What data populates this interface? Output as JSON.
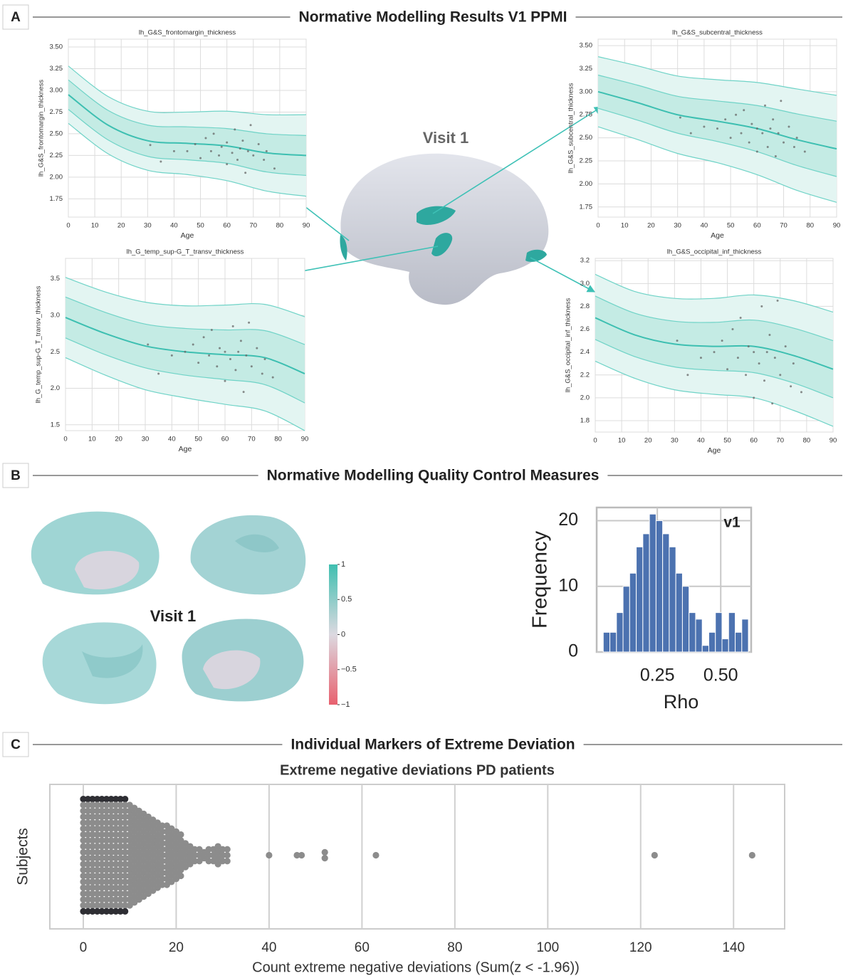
{
  "sections": [
    {
      "letter": "A",
      "title": "Normative Modelling Results V1 PPMI"
    },
    {
      "letter": "B",
      "title": "Normative Modelling Quality Control Measures"
    },
    {
      "letter": "C",
      "title": "Individual Markers of Extreme Deviation"
    }
  ],
  "brain_label": "Visit 1",
  "surface_label": "Visit 1",
  "colorbar": {
    "ylim": [
      -1,
      1
    ],
    "ticks": [
      1,
      0.5,
      0,
      {
        "value": -0.5,
        "label": "−0.5"
      },
      {
        "value": -1,
        "label": "−1"
      }
    ],
    "colors": [
      "#e8606e",
      "#dcd9e0",
      "#3fbfb0"
    ]
  },
  "chart_data": [
    {
      "type": "line",
      "title": "lh_G&S_frontomargin_thickness",
      "xlabel": "Age",
      "ylabel": "lh_G&S_frontomargin_thickness",
      "x": [
        0,
        15,
        30,
        45,
        60,
        75,
        90
      ],
      "xlim": [
        0,
        90
      ],
      "xticks": [
        0,
        10,
        20,
        30,
        40,
        50,
        60,
        70,
        80,
        90
      ],
      "ylim": [
        1.54,
        3.59
      ],
      "yticks": [
        {
          "value": 3.5,
          "label": "3.50"
        },
        3.25,
        {
          "value": 3,
          "label": "3.00"
        },
        2.75,
        {
          "value": 2.5,
          "label": "2.50"
        },
        2.25,
        {
          "value": 2,
          "label": "2.00"
        },
        1.75
      ],
      "band_colors": [
        "#e3f5f2",
        "#c4ebe4"
      ],
      "series": [
        {
          "color": "#6fd3c7",
          "values": [
            3.28,
            2.93,
            2.76,
            2.75,
            2.76,
            2.72,
            2.72
          ]
        },
        {
          "color": "#6fd3c7",
          "values": [
            3.12,
            2.77,
            2.6,
            2.58,
            2.56,
            2.5,
            2.48
          ]
        },
        {
          "color": "#3dbfb1",
          "values": [
            2.95,
            2.6,
            2.42,
            2.39,
            2.36,
            2.28,
            2.25
          ]
        },
        {
          "color": "#6fd3c7",
          "values": [
            2.78,
            2.43,
            2.24,
            2.2,
            2.16,
            2.06,
            2.02
          ]
        },
        {
          "color": "#6fd3c7",
          "values": [
            2.62,
            2.27,
            2.08,
            2.03,
            1.96,
            1.84,
            1.78
          ]
        }
      ],
      "points": {
        "color": "#666666",
        "x": [
          45,
          48,
          50,
          52,
          54,
          55,
          57,
          58,
          60,
          60,
          62,
          63,
          64,
          65,
          66,
          67,
          68,
          69,
          70,
          72,
          74,
          75,
          78,
          31,
          35,
          40
        ],
        "y": [
          2.3,
          2.38,
          2.22,
          2.45,
          2.3,
          2.5,
          2.25,
          2.35,
          2.4,
          2.15,
          2.28,
          2.55,
          2.2,
          2.33,
          2.42,
          2.05,
          2.3,
          2.6,
          2.25,
          2.38,
          2.2,
          2.3,
          2.1,
          2.37,
          2.18,
          2.3
        ]
      }
    },
    {
      "type": "line",
      "title": "lh_G&S_subcentral_thickness",
      "xlabel": "Age",
      "ylabel": "lh_G&S_subcentral_thickness",
      "x": [
        0,
        15,
        30,
        45,
        60,
        75,
        90
      ],
      "xlim": [
        0,
        90
      ],
      "xticks": [
        0,
        10,
        20,
        30,
        40,
        50,
        60,
        70,
        80,
        90
      ],
      "ylim": [
        1.64,
        3.57
      ],
      "yticks": [
        {
          "value": 3.5,
          "label": "3.50"
        },
        3.25,
        {
          "value": 3,
          "label": "3.00"
        },
        2.75,
        {
          "value": 2.5,
          "label": "2.50"
        },
        2.25,
        {
          "value": 2,
          "label": "2.00"
        },
        1.75
      ],
      "band_colors": [
        "#e3f5f2",
        "#c4ebe4"
      ],
      "series": [
        {
          "color": "#6fd3c7",
          "values": [
            3.38,
            3.28,
            3.17,
            3.13,
            3.1,
            3.03,
            2.96
          ]
        },
        {
          "color": "#6fd3c7",
          "values": [
            3.18,
            3.07,
            2.95,
            2.9,
            2.85,
            2.76,
            2.68
          ]
        },
        {
          "color": "#3dbfb1",
          "values": [
            3.0,
            2.88,
            2.75,
            2.68,
            2.6,
            2.48,
            2.38
          ]
        },
        {
          "color": "#6fd3c7",
          "values": [
            2.82,
            2.69,
            2.55,
            2.46,
            2.35,
            2.2,
            2.08
          ]
        },
        {
          "color": "#6fd3c7",
          "values": [
            2.62,
            2.48,
            2.33,
            2.23,
            2.1,
            1.93,
            1.8
          ]
        }
      ],
      "points": {
        "color": "#666666",
        "x": [
          45,
          48,
          50,
          52,
          54,
          55,
          57,
          58,
          60,
          60,
          62,
          63,
          64,
          65,
          66,
          67,
          68,
          69,
          70,
          72,
          74,
          75,
          78,
          31,
          35,
          40
        ],
        "y": [
          2.6,
          2.7,
          2.5,
          2.75,
          2.55,
          2.8,
          2.45,
          2.65,
          2.6,
          2.35,
          2.55,
          2.85,
          2.4,
          2.6,
          2.7,
          2.3,
          2.55,
          2.9,
          2.45,
          2.62,
          2.4,
          2.5,
          2.35,
          2.72,
          2.55,
          2.62
        ]
      }
    },
    {
      "type": "line",
      "title": "lh_G_temp_sup-G_T_transv_thickness",
      "xlabel": "Age",
      "ylabel": "lh_G_temp_sup-G_T_transv_thickness",
      "x": [
        0,
        15,
        30,
        45,
        60,
        75,
        90
      ],
      "xlim": [
        0,
        90
      ],
      "xticks": [
        0,
        10,
        20,
        30,
        40,
        50,
        60,
        70,
        80,
        90
      ],
      "ylim": [
        1.42,
        3.78
      ],
      "yticks": [
        3.5,
        {
          "value": 3,
          "label": "3.0"
        },
        2.5,
        {
          "value": 2,
          "label": "2.0"
        },
        1.5
      ],
      "band_colors": [
        "#e3f5f2",
        "#c4ebe4"
      ],
      "series": [
        {
          "color": "#6fd3c7",
          "values": [
            3.52,
            3.32,
            3.18,
            3.13,
            3.14,
            3.15,
            2.98
          ]
        },
        {
          "color": "#6fd3c7",
          "values": [
            3.25,
            3.04,
            2.88,
            2.82,
            2.8,
            2.79,
            2.6
          ]
        },
        {
          "color": "#3dbfb1",
          "values": [
            2.97,
            2.75,
            2.58,
            2.5,
            2.46,
            2.42,
            2.2
          ]
        },
        {
          "color": "#6fd3c7",
          "values": [
            2.69,
            2.46,
            2.28,
            2.18,
            2.12,
            2.05,
            1.8
          ]
        },
        {
          "color": "#6fd3c7",
          "values": [
            2.42,
            2.18,
            1.98,
            1.87,
            1.78,
            1.69,
            1.42
          ]
        }
      ],
      "points": {
        "color": "#666666",
        "x": [
          45,
          48,
          50,
          52,
          54,
          55,
          57,
          58,
          60,
          60,
          62,
          63,
          64,
          65,
          66,
          67,
          68,
          69,
          70,
          72,
          74,
          75,
          78,
          31,
          35,
          40
        ],
        "y": [
          2.5,
          2.6,
          2.35,
          2.7,
          2.45,
          2.8,
          2.3,
          2.55,
          2.5,
          2.1,
          2.4,
          2.85,
          2.25,
          2.5,
          2.65,
          1.95,
          2.45,
          2.9,
          2.3,
          2.55,
          2.2,
          2.4,
          2.15,
          2.6,
          2.2,
          2.45
        ]
      }
    },
    {
      "type": "line",
      "title": "lh_G&S_occipital_inf_thickness",
      "xlabel": "Age",
      "ylabel": "lh_G&S_occipital_inf_thickness",
      "x": [
        0,
        15,
        30,
        45,
        60,
        75,
        90
      ],
      "xlim": [
        0,
        90
      ],
      "xticks": [
        0,
        10,
        20,
        30,
        40,
        50,
        60,
        70,
        80,
        90
      ],
      "ylim": [
        1.7,
        3.22
      ],
      "yticks": [
        3.2,
        {
          "value": 3,
          "label": "3.0"
        },
        2.8,
        2.6,
        2.4,
        2.2,
        {
          "value": 2,
          "label": "2.0"
        },
        1.8
      ],
      "band_colors": [
        "#e3f5f2",
        "#c4ebe4"
      ],
      "series": [
        {
          "color": "#6fd3c7",
          "values": [
            3.08,
            2.93,
            2.87,
            2.87,
            2.9,
            2.85,
            2.75
          ]
        },
        {
          "color": "#6fd3c7",
          "values": [
            2.89,
            2.74,
            2.67,
            2.66,
            2.68,
            2.61,
            2.5
          ]
        },
        {
          "color": "#3dbfb1",
          "values": [
            2.7,
            2.55,
            2.47,
            2.45,
            2.45,
            2.37,
            2.25
          ]
        },
        {
          "color": "#6fd3c7",
          "values": [
            2.51,
            2.36,
            2.27,
            2.24,
            2.22,
            2.13,
            2.0
          ]
        },
        {
          "color": "#6fd3c7",
          "values": [
            2.32,
            2.17,
            2.07,
            2.03,
            2.0,
            1.89,
            1.75
          ]
        }
      ],
      "points": {
        "color": "#666666",
        "x": [
          45,
          48,
          50,
          52,
          54,
          55,
          57,
          58,
          60,
          60,
          62,
          63,
          64,
          65,
          66,
          67,
          68,
          69,
          70,
          72,
          74,
          75,
          78,
          31,
          35,
          40
        ],
        "y": [
          2.4,
          2.5,
          2.25,
          2.6,
          2.35,
          2.7,
          2.2,
          2.45,
          2.4,
          2.0,
          2.3,
          2.8,
          2.15,
          2.4,
          2.55,
          1.95,
          2.35,
          2.85,
          2.2,
          2.45,
          2.1,
          2.3,
          2.05,
          2.5,
          2.2,
          2.35
        ]
      }
    },
    {
      "type": "histogram",
      "xlabel": "Rho",
      "ylabel": "Frequency",
      "annotation": "v1",
      "color": "#4c72b0",
      "bins": [
        0.037,
        0.063,
        0.089,
        0.115,
        0.141,
        0.167,
        0.193,
        0.219,
        0.245,
        0.271,
        0.297,
        0.323,
        0.349,
        0.375,
        0.401,
        0.427,
        0.453,
        0.479,
        0.505,
        0.531,
        0.557,
        0.583,
        0.609
      ],
      "values": [
        3,
        3,
        6,
        10,
        12,
        16,
        18,
        21,
        20,
        18,
        16,
        12,
        10,
        6,
        5,
        1,
        3,
        6,
        2,
        6,
        3,
        5
      ],
      "xlim": [
        0.011,
        0.62
      ],
      "xticks": [
        0.25,
        {
          "value": 0.5,
          "label": "0.50"
        }
      ],
      "ylim": [
        0,
        22
      ],
      "yticks": [
        0,
        10,
        20
      ],
      "grid": true
    },
    {
      "type": "swarm",
      "title": "Extreme negative deviations PD patients",
      "xlabel": "Count extreme negative deviations (Sum(z < -1.96))",
      "ylabel": "Subjects",
      "color": "#8c8c8c",
      "edge_color": "#2e2e33",
      "values": [
        0,
        1,
        2,
        3,
        4,
        5,
        6,
        7,
        8,
        9,
        10,
        11,
        12,
        13,
        14,
        15,
        16,
        17,
        18,
        19,
        20,
        21,
        22,
        23,
        24,
        25,
        26,
        27,
        28,
        29,
        30,
        31,
        40,
        46,
        47,
        52,
        63,
        123,
        144
      ],
      "subjects": [
        20,
        20,
        20,
        20,
        20,
        20,
        20,
        20,
        20,
        20,
        18,
        17,
        16,
        15,
        14,
        13,
        12,
        11,
        11,
        10,
        9,
        8,
        5,
        4,
        3,
        3,
        2,
        3,
        3,
        4,
        3,
        3,
        1,
        1,
        1,
        2,
        1,
        1,
        1
      ],
      "xlim": [
        -7.2,
        151
      ],
      "xticks": [
        0,
        20,
        40,
        60,
        80,
        100,
        120,
        140
      ],
      "grid": true
    }
  ]
}
